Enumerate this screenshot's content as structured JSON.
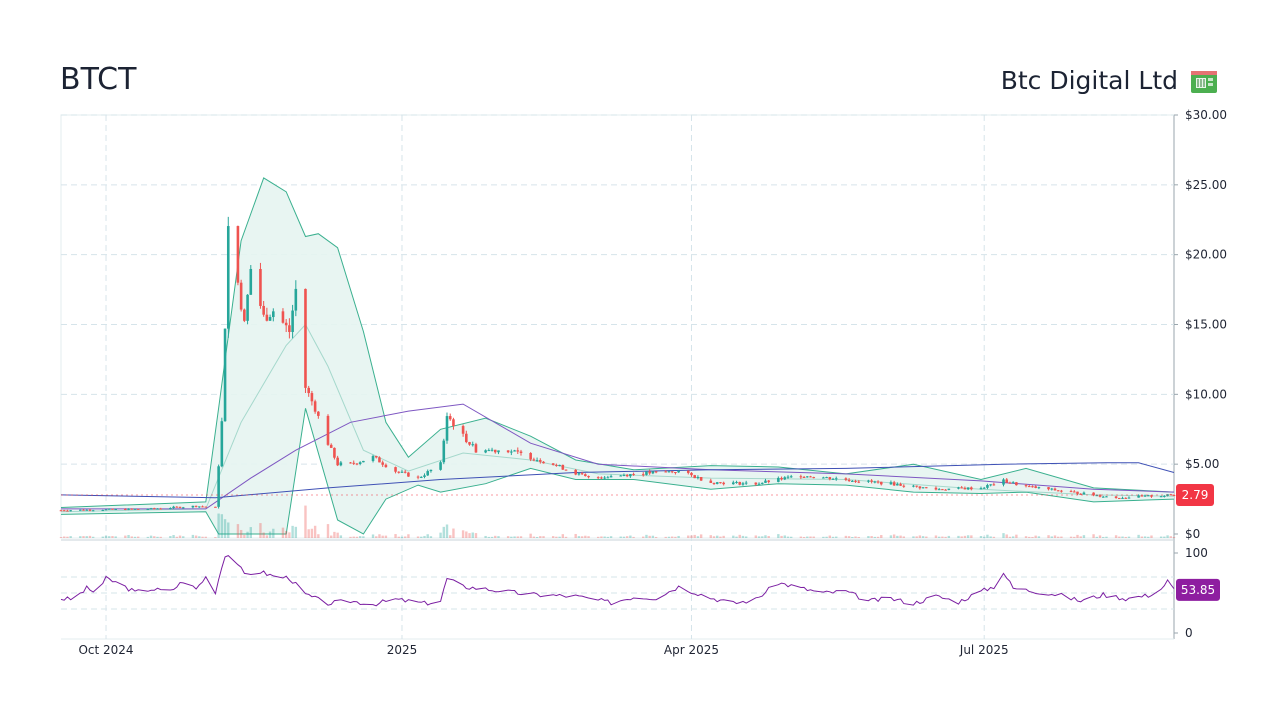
{
  "header": {
    "ticker": "BTCT",
    "company_name": "Btc Digital Ltd",
    "logo_icon": "chip-board-icon"
  },
  "colors": {
    "up": "#26a69a",
    "down": "#ef5350",
    "band_fill": "#e6f4f1",
    "band_line": "#3ab08f",
    "ma_long": "#3f51b5",
    "ma_mid": "#7e57c2",
    "rsi_line": "#7b1fa2",
    "price_badge": "#f23645",
    "rsi_badge": "#8e1ea0",
    "grid": "#d6e4ea"
  },
  "chart_data": [
    {
      "type": "candlestick",
      "panel": "price",
      "title": "",
      "y_ticks": [
        "$30.00",
        "$25.00",
        "$20.00",
        "$15.00",
        "$10.00",
        "$5.00",
        "$0"
      ],
      "ylim": [
        0,
        30
      ],
      "x_ticks": [
        "Oct 2024",
        "2025",
        "Apr 2025",
        "Jul 2025"
      ],
      "x_range": [
        "2024-09-17",
        "2025-08-29"
      ],
      "last_price": "2.79",
      "close_points": [
        [
          "2024-09-17",
          1.7
        ],
        [
          "2024-10-01",
          1.75
        ],
        [
          "2024-10-15",
          1.8
        ],
        [
          "2024-10-29",
          2.0
        ],
        [
          "2024-11-04",
          1.9
        ],
        [
          "2024-11-06",
          8.0
        ],
        [
          "2024-11-08",
          22.0
        ],
        [
          "2024-11-11",
          18.0
        ],
        [
          "2024-11-13",
          15.0
        ],
        [
          "2024-11-15",
          19.0
        ],
        [
          "2024-11-19",
          15.5
        ],
        [
          "2024-11-22",
          16.0
        ],
        [
          "2024-11-27",
          14.5
        ],
        [
          "2024-11-29",
          17.5
        ],
        [
          "2024-12-02",
          10.5
        ],
        [
          "2024-12-05",
          9.0
        ],
        [
          "2024-12-09",
          6.5
        ],
        [
          "2024-12-12",
          5.0
        ],
        [
          "2024-12-16",
          5.0
        ],
        [
          "2024-12-23",
          5.5
        ],
        [
          "2024-12-30",
          4.5
        ],
        [
          "2025-01-06",
          4.0
        ],
        [
          "2025-01-13",
          5.0
        ],
        [
          "2025-01-15",
          8.5
        ],
        [
          "2025-01-20",
          7.0
        ],
        [
          "2025-01-24",
          6.0
        ],
        [
          "2025-02-03",
          6.0
        ],
        [
          "2025-02-17",
          5.0
        ],
        [
          "2025-02-28",
          4.0
        ],
        [
          "2025-03-14",
          4.3
        ],
        [
          "2025-03-28",
          4.5
        ],
        [
          "2025-04-07",
          3.7
        ],
        [
          "2025-04-21",
          3.6
        ],
        [
          "2025-05-05",
          4.2
        ],
        [
          "2025-05-19",
          3.9
        ],
        [
          "2025-06-02",
          3.6
        ],
        [
          "2025-06-16",
          3.2
        ],
        [
          "2025-06-30",
          3.3
        ],
        [
          "2025-07-07",
          3.8
        ],
        [
          "2025-07-14",
          3.4
        ],
        [
          "2025-07-28",
          3.0
        ],
        [
          "2025-08-11",
          2.6
        ],
        [
          "2025-08-29",
          2.79
        ]
      ],
      "bollinger_upper": [
        [
          "2024-09-17",
          1.9
        ],
        [
          "2024-11-01",
          2.3
        ],
        [
          "2024-11-05",
          9.0
        ],
        [
          "2024-11-12",
          21.0
        ],
        [
          "2024-11-19",
          25.5
        ],
        [
          "2024-11-26",
          24.5
        ],
        [
          "2024-12-02",
          21.3
        ],
        [
          "2024-12-06",
          21.5
        ],
        [
          "2024-12-12",
          20.5
        ],
        [
          "2024-12-20",
          14.5
        ],
        [
          "2024-12-27",
          8.0
        ],
        [
          "2025-01-03",
          5.5
        ],
        [
          "2025-01-13",
          7.5
        ],
        [
          "2025-01-27",
          8.3
        ],
        [
          "2025-02-10",
          7.0
        ],
        [
          "2025-02-24",
          5.3
        ],
        [
          "2025-03-14",
          4.6
        ],
        [
          "2025-04-07",
          4.9
        ],
        [
          "2025-04-28",
          4.8
        ],
        [
          "2025-05-19",
          4.3
        ],
        [
          "2025-06-09",
          5.0
        ],
        [
          "2025-06-30",
          3.9
        ],
        [
          "2025-07-14",
          4.7
        ],
        [
          "2025-08-04",
          3.3
        ],
        [
          "2025-08-29",
          3.0
        ]
      ],
      "bollinger_lower": [
        [
          "2024-09-17",
          1.4
        ],
        [
          "2024-11-01",
          1.6
        ],
        [
          "2024-11-05",
          0.0
        ],
        [
          "2024-11-26",
          0.0
        ],
        [
          "2024-12-02",
          9.0
        ],
        [
          "2024-12-12",
          1.0
        ],
        [
          "2024-12-20",
          0.0
        ],
        [
          "2024-12-27",
          2.5
        ],
        [
          "2025-01-06",
          3.5
        ],
        [
          "2025-01-13",
          3.0
        ],
        [
          "2025-01-27",
          3.6
        ],
        [
          "2025-02-10",
          4.7
        ],
        [
          "2025-02-24",
          3.9
        ],
        [
          "2025-03-14",
          3.9
        ],
        [
          "2025-04-07",
          3.2
        ],
        [
          "2025-04-28",
          3.6
        ],
        [
          "2025-05-19",
          3.5
        ],
        [
          "2025-06-09",
          3.0
        ],
        [
          "2025-06-30",
          2.9
        ],
        [
          "2025-07-14",
          3.0
        ],
        [
          "2025-08-04",
          2.3
        ],
        [
          "2025-08-29",
          2.5
        ]
      ],
      "ma_long": [
        [
          "2024-09-17",
          2.8
        ],
        [
          "2024-11-04",
          2.6
        ],
        [
          "2024-12-09",
          3.3
        ],
        [
          "2025-01-13",
          3.9
        ],
        [
          "2025-02-24",
          4.4
        ],
        [
          "2025-04-07",
          4.6
        ],
        [
          "2025-05-19",
          4.7
        ],
        [
          "2025-07-07",
          5.0
        ],
        [
          "2025-08-08",
          5.1
        ],
        [
          "2025-08-18",
          5.1
        ],
        [
          "2025-08-29",
          4.4
        ]
      ],
      "ma_mid": [
        [
          "2024-09-17",
          1.8
        ],
        [
          "2024-11-01",
          1.8
        ],
        [
          "2024-11-15",
          4.0
        ],
        [
          "2024-11-29",
          6.0
        ],
        [
          "2024-12-16",
          8.0
        ],
        [
          "2025-01-03",
          8.8
        ],
        [
          "2025-01-20",
          9.3
        ],
        [
          "2025-02-10",
          6.5
        ],
        [
          "2025-03-03",
          5.0
        ],
        [
          "2025-04-07",
          4.6
        ],
        [
          "2025-05-19",
          4.3
        ],
        [
          "2025-06-30",
          3.8
        ],
        [
          "2025-08-04",
          3.2
        ],
        [
          "2025-08-29",
          3.0
        ]
      ],
      "ma_short": [
        [
          "2024-09-17",
          1.6
        ],
        [
          "2024-11-01",
          1.8
        ],
        [
          "2024-11-12",
          8.0
        ],
        [
          "2024-11-26",
          13.5
        ],
        [
          "2024-12-02",
          15.0
        ],
        [
          "2024-12-09",
          12.0
        ],
        [
          "2024-12-20",
          6.0
        ],
        [
          "2025-01-03",
          4.5
        ],
        [
          "2025-01-20",
          5.8
        ],
        [
          "2025-02-10",
          5.3
        ],
        [
          "2025-03-03",
          4.3
        ],
        [
          "2025-04-07",
          4.0
        ],
        [
          "2025-05-19",
          3.9
        ],
        [
          "2025-06-30",
          3.2
        ],
        [
          "2025-08-04",
          2.8
        ],
        [
          "2025-08-29",
          2.7
        ]
      ]
    },
    {
      "type": "line",
      "panel": "rsi",
      "y_ticks": [
        "100",
        "0"
      ],
      "ylim": [
        0,
        100
      ],
      "last_value": "53.85",
      "points": [
        [
          "2024-09-17",
          43
        ],
        [
          "2024-09-21",
          42
        ],
        [
          "2024-09-25",
          56
        ],
        [
          "2024-09-28",
          50
        ],
        [
          "2024-10-01",
          68
        ],
        [
          "2024-10-05",
          62
        ],
        [
          "2024-10-10",
          51
        ],
        [
          "2024-10-15",
          55
        ],
        [
          "2024-10-21",
          52
        ],
        [
          "2024-10-25",
          65
        ],
        [
          "2024-10-29",
          55
        ],
        [
          "2024-11-01",
          70
        ],
        [
          "2024-11-04",
          52
        ],
        [
          "2024-11-07",
          98
        ],
        [
          "2024-11-10",
          95
        ],
        [
          "2024-11-13",
          72
        ],
        [
          "2024-11-17",
          78
        ],
        [
          "2024-11-22",
          71
        ],
        [
          "2024-11-27",
          69
        ],
        [
          "2024-12-02",
          48
        ],
        [
          "2024-12-09",
          37
        ],
        [
          "2024-12-16",
          40
        ],
        [
          "2024-12-23",
          36
        ],
        [
          "2024-12-30",
          42
        ],
        [
          "2025-01-08",
          37
        ],
        [
          "2025-01-13",
          40
        ],
        [
          "2025-01-15",
          68
        ],
        [
          "2025-01-20",
          58
        ],
        [
          "2025-01-27",
          55
        ],
        [
          "2025-02-10",
          48
        ],
        [
          "2025-02-24",
          46
        ],
        [
          "2025-03-07",
          38
        ],
        [
          "2025-03-14",
          45
        ],
        [
          "2025-03-21",
          44
        ],
        [
          "2025-03-28",
          58
        ],
        [
          "2025-04-07",
          44
        ],
        [
          "2025-04-14",
          37
        ],
        [
          "2025-04-21",
          42
        ],
        [
          "2025-04-28",
          63
        ],
        [
          "2025-05-05",
          56
        ],
        [
          "2025-05-12",
          50
        ],
        [
          "2025-05-19",
          52
        ],
        [
          "2025-05-26",
          40
        ],
        [
          "2025-06-02",
          43
        ],
        [
          "2025-06-09",
          37
        ],
        [
          "2025-06-16",
          46
        ],
        [
          "2025-06-23",
          39
        ],
        [
          "2025-06-30",
          52
        ],
        [
          "2025-07-04",
          58
        ],
        [
          "2025-07-07",
          76
        ],
        [
          "2025-07-10",
          56
        ],
        [
          "2025-07-17",
          52
        ],
        [
          "2025-07-24",
          48
        ],
        [
          "2025-07-31",
          40
        ],
        [
          "2025-08-07",
          48
        ],
        [
          "2025-08-14",
          43
        ],
        [
          "2025-08-21",
          47
        ],
        [
          "2025-08-25",
          55
        ],
        [
          "2025-08-27",
          65
        ],
        [
          "2025-08-29",
          54
        ]
      ]
    }
  ]
}
